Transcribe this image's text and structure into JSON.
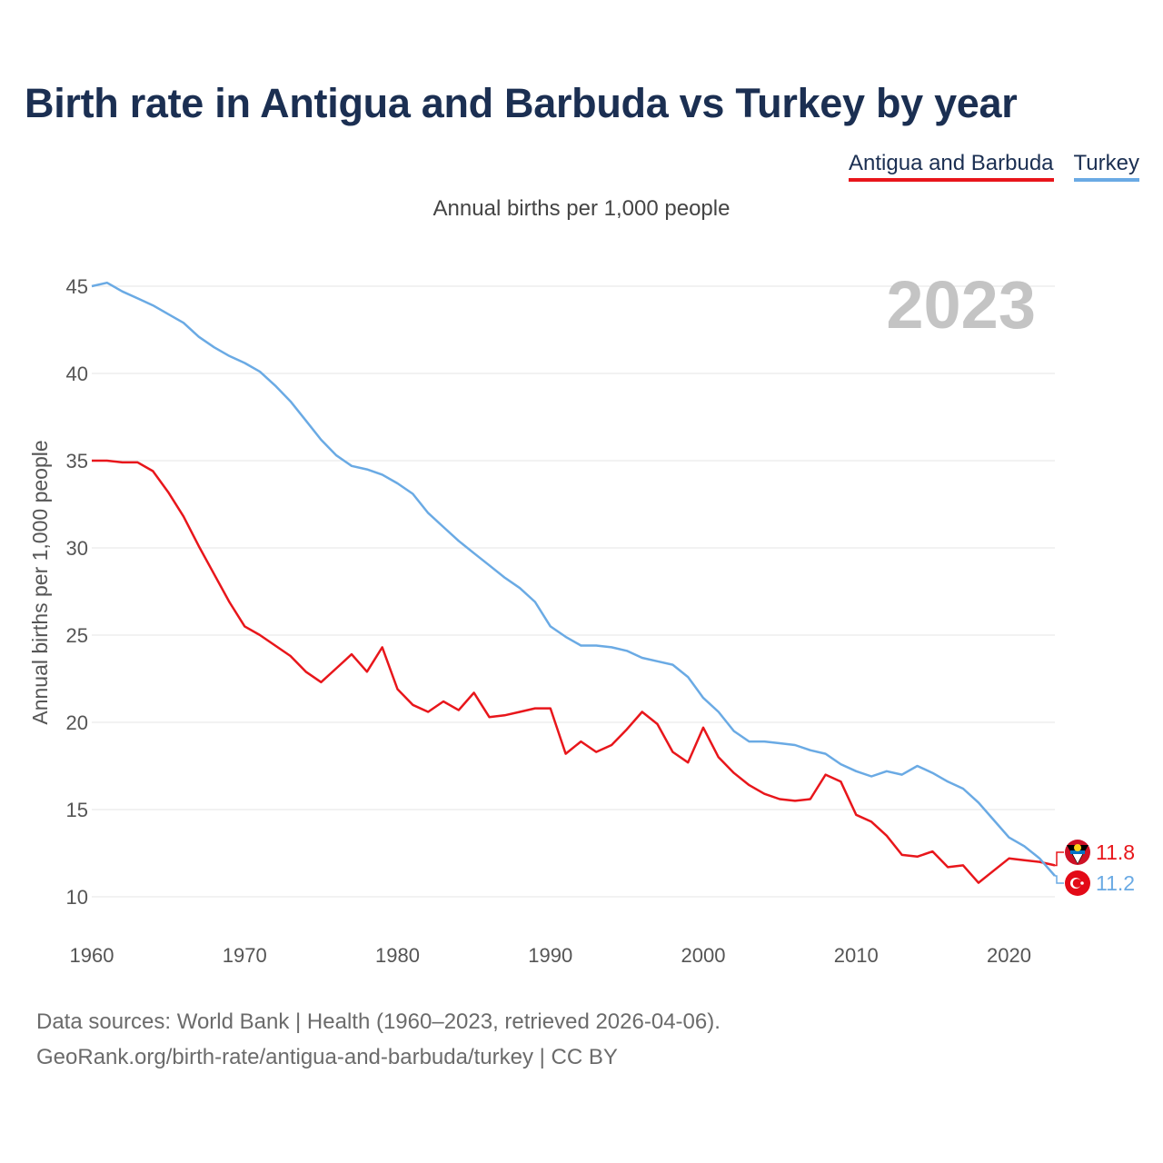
{
  "title": "Birth rate in Antigua and Barbuda vs Turkey by year",
  "subtitle": "Annual births per 1,000 people",
  "legend": [
    "Antigua and Barbuda",
    "Turkey"
  ],
  "year_badge": "2023",
  "footer": {
    "line1": "Data sources: World Bank | Health (1960–2023, retrieved 2026-04-06).",
    "line2": "GeoRank.org/birth-rate/antigua-and-barbuda/turkey | CC BY"
  },
  "chart_data": {
    "type": "line",
    "title": "Birth rate in Antigua and Barbuda vs Turkey by year",
    "xlabel": "",
    "ylabel": "Annual births per 1,000 people",
    "xlim": [
      1960,
      2023
    ],
    "ylim": [
      10,
      45
    ],
    "xticks": [
      1960,
      1970,
      1980,
      1990,
      2000,
      2010,
      2020
    ],
    "yticks": [
      10,
      15,
      20,
      25,
      30,
      35,
      40,
      45
    ],
    "grid": true,
    "x": [
      1960,
      1961,
      1962,
      1963,
      1964,
      1965,
      1966,
      1967,
      1968,
      1969,
      1970,
      1971,
      1972,
      1973,
      1974,
      1975,
      1976,
      1977,
      1978,
      1979,
      1980,
      1981,
      1982,
      1983,
      1984,
      1985,
      1986,
      1987,
      1988,
      1989,
      1990,
      1991,
      1992,
      1993,
      1994,
      1995,
      1996,
      1997,
      1998,
      1999,
      2000,
      2001,
      2002,
      2003,
      2004,
      2005,
      2006,
      2007,
      2008,
      2009,
      2010,
      2011,
      2012,
      2013,
      2014,
      2015,
      2016,
      2017,
      2018,
      2019,
      2020,
      2021,
      2022,
      2023
    ],
    "series": [
      {
        "name": "Antigua and Barbuda",
        "color": "#e8161b",
        "end_label": "11.8",
        "values": [
          35.0,
          35.0,
          34.9,
          34.9,
          34.4,
          33.2,
          31.8,
          30.1,
          28.5,
          26.9,
          25.5,
          25.0,
          24.4,
          23.8,
          22.9,
          22.3,
          23.1,
          23.9,
          22.9,
          24.3,
          21.9,
          21.0,
          20.6,
          21.2,
          20.7,
          21.7,
          20.3,
          20.4,
          20.6,
          20.8,
          20.8,
          18.2,
          18.9,
          18.3,
          18.7,
          19.6,
          20.6,
          19.9,
          18.3,
          17.7,
          19.7,
          18.0,
          17.1,
          16.4,
          15.9,
          15.6,
          15.5,
          15.6,
          17.0,
          16.6,
          14.7,
          14.3,
          13.5,
          12.4,
          12.3,
          12.6,
          11.7,
          11.8,
          10.8,
          11.5,
          12.2,
          12.1,
          12.0,
          11.8
        ]
      },
      {
        "name": "Turkey",
        "color": "#6aaae4",
        "end_label": "11.2",
        "values": [
          45.0,
          45.2,
          44.7,
          44.3,
          43.9,
          43.4,
          42.9,
          42.1,
          41.5,
          41.0,
          40.6,
          40.1,
          39.3,
          38.4,
          37.3,
          36.2,
          35.3,
          34.7,
          34.5,
          34.2,
          33.7,
          33.1,
          32.0,
          31.2,
          30.4,
          29.7,
          29.0,
          28.3,
          27.7,
          26.9,
          25.5,
          24.9,
          24.4,
          24.4,
          24.3,
          24.1,
          23.7,
          23.5,
          23.3,
          22.6,
          21.4,
          20.6,
          19.5,
          18.9,
          18.9,
          18.8,
          18.7,
          18.4,
          18.2,
          17.6,
          17.2,
          16.9,
          17.2,
          17.0,
          17.5,
          17.1,
          16.6,
          16.2,
          15.4,
          14.4,
          13.4,
          12.9,
          12.2,
          11.2
        ]
      }
    ]
  }
}
